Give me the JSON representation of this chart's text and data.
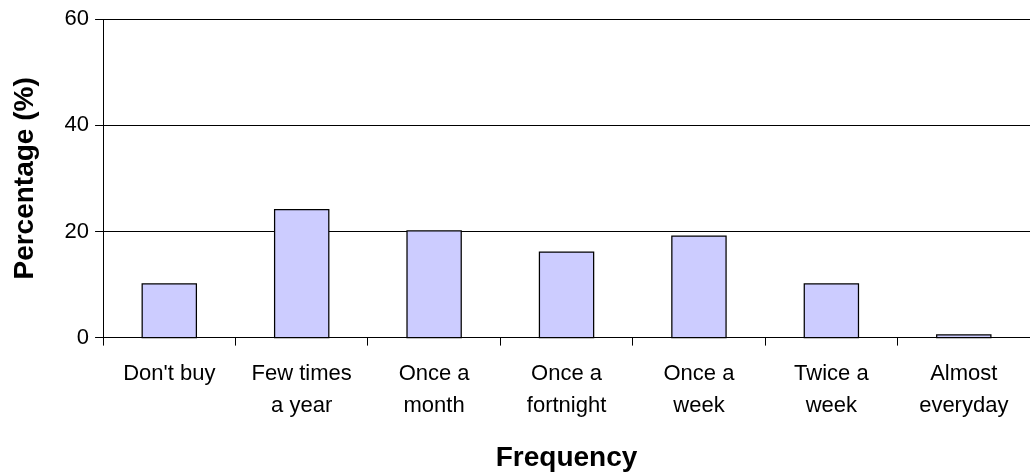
{
  "chart_data": {
    "type": "bar",
    "xlabel": "Frequency",
    "ylabel": "Percentage (%)",
    "categories": [
      "Don't buy",
      "Few times\na year",
      "Once a\nmonth",
      "Once a\nfortnight",
      "Once a\nweek",
      "Twice a\nweek",
      "Almost\neveryday"
    ],
    "values": [
      10,
      24,
      20,
      16,
      19,
      10,
      0.4
    ],
    "color": "#ccccff",
    "ylim": [
      0,
      60
    ],
    "yticks": [
      0,
      20,
      40,
      60
    ],
    "grid": "y"
  }
}
